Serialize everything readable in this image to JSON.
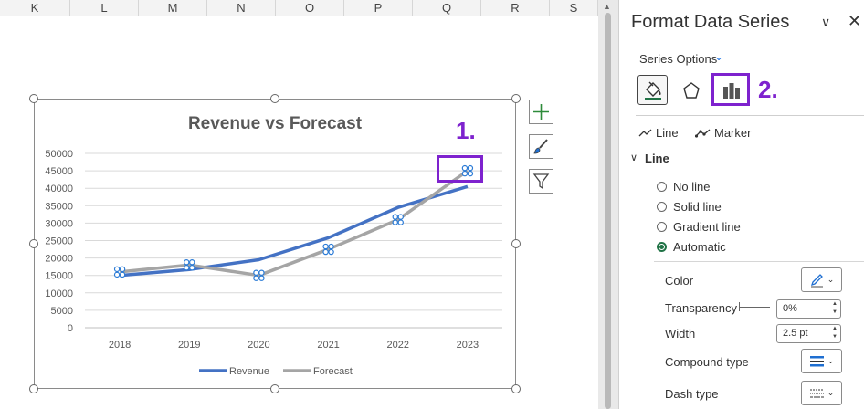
{
  "sheet": {
    "columns": [
      "K",
      "L",
      "M",
      "N",
      "O",
      "P",
      "Q",
      "R",
      "S"
    ]
  },
  "chart_data": {
    "type": "line",
    "title": "Revenue vs Forecast",
    "categories": [
      "2018",
      "2019",
      "2020",
      "2021",
      "2022",
      "2023"
    ],
    "ylim": [
      0,
      50000
    ],
    "yticks": [
      "0",
      "5000",
      "10000",
      "15000",
      "20000",
      "25000",
      "30000",
      "35000",
      "40000",
      "45000",
      "50000"
    ],
    "grid": true,
    "legend_position": "bottom",
    "series": [
      {
        "name": "Revenue",
        "values": [
          15000,
          16700,
          19500,
          25800,
          34500,
          40500
        ],
        "color": "#4472c4"
      },
      {
        "name": "Forecast",
        "values": [
          16000,
          18000,
          15000,
          22500,
          31000,
          45000
        ],
        "color": "#a5a5a5",
        "selected": true
      }
    ]
  },
  "annotations": {
    "step1": "1.",
    "step2": "2."
  },
  "panel": {
    "title": "Format Data Series",
    "series_options_label": "Series Options",
    "tabs": {
      "line": "Line",
      "marker": "Marker"
    },
    "line_section": "Line",
    "radios": [
      {
        "label": "No line",
        "selected": false
      },
      {
        "label": "Solid line",
        "selected": false
      },
      {
        "label": "Gradient line",
        "selected": false
      },
      {
        "label": "Automatic",
        "selected": true
      }
    ],
    "color_label": "Color",
    "transparency_label": "Transparency",
    "transparency_value": "0%",
    "width_label": "Width",
    "width_value": "2.5 pt",
    "compound_label": "Compound type",
    "dash_label": "Dash type"
  },
  "colors": {
    "accent": "#7e22ce",
    "excel_green": "#217346"
  }
}
